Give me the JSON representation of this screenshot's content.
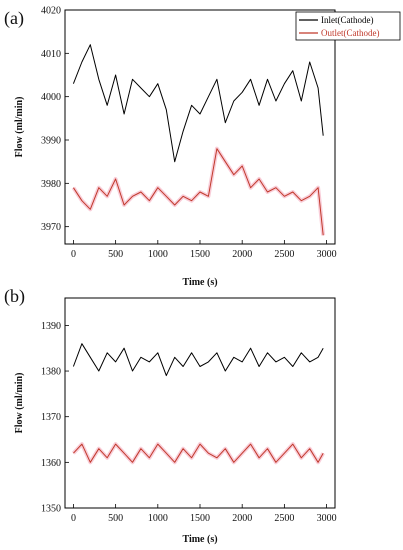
{
  "chart_data": [
    {
      "panel_label": "(a)",
      "type": "line",
      "xlabel": "Time (s)",
      "ylabel": "Flow (ml/min)",
      "xlim": [
        -100,
        3100
      ],
      "ylim": [
        3966,
        4020
      ],
      "xticks": [
        0,
        500,
        1000,
        1500,
        2000,
        2500,
        3000
      ],
      "yticks": [
        3970,
        3980,
        3990,
        4000,
        4010,
        4020
      ],
      "legend": {
        "placement": "top-right"
      },
      "series": [
        {
          "name": "Inlet(Cathode)",
          "color": "#000000",
          "x": [
            0,
            100,
            200,
            300,
            400,
            500,
            600,
            700,
            800,
            900,
            1000,
            1100,
            1200,
            1300,
            1400,
            1500,
            1600,
            1700,
            1800,
            1900,
            2000,
            2100,
            2200,
            2300,
            2400,
            2500,
            2600,
            2700,
            2800,
            2900,
            2960
          ],
          "values": [
            4003,
            4008,
            4012,
            4004,
            3998,
            4005,
            3996,
            4004,
            4002,
            4000,
            4003,
            3997,
            3985,
            3992,
            3998,
            3996,
            4000,
            4004,
            3994,
            3999,
            4001,
            4004,
            3998,
            4004,
            3999,
            4003,
            4006,
            3999,
            4008,
            4002,
            3991
          ]
        },
        {
          "name": "Outlet(Cathode)",
          "color": "#c0392b",
          "x": [
            0,
            100,
            200,
            300,
            400,
            500,
            600,
            700,
            800,
            900,
            1000,
            1100,
            1200,
            1300,
            1400,
            1500,
            1600,
            1700,
            1800,
            1900,
            2000,
            2100,
            2200,
            2300,
            2400,
            2500,
            2600,
            2700,
            2800,
            2900,
            2960
          ],
          "values": [
            3979,
            3976,
            3974,
            3979,
            3977,
            3981,
            3975,
            3977,
            3978,
            3976,
            3979,
            3977,
            3975,
            3977,
            3976,
            3978,
            3977,
            3988,
            3985,
            3982,
            3984,
            3979,
            3981,
            3978,
            3979,
            3977,
            3978,
            3976,
            3977,
            3979,
            3968
          ]
        }
      ]
    },
    {
      "panel_label": "(b)",
      "type": "line",
      "xlabel": "Time (s)",
      "ylabel": "Flow (ml/min)",
      "xlim": [
        -100,
        3100
      ],
      "ylim": [
        1350,
        1396
      ],
      "xticks": [
        0,
        500,
        1000,
        1500,
        2000,
        2500,
        3000
      ],
      "yticks": [
        1350,
        1360,
        1370,
        1380,
        1390
      ],
      "series": [
        {
          "name": "Inlet(Cathode)",
          "color": "#000000",
          "x": [
            0,
            100,
            200,
            300,
            400,
            500,
            600,
            700,
            800,
            900,
            1000,
            1100,
            1200,
            1300,
            1400,
            1500,
            1600,
            1700,
            1800,
            1900,
            2000,
            2100,
            2200,
            2300,
            2400,
            2500,
            2600,
            2700,
            2800,
            2900,
            2960
          ],
          "values": [
            1381,
            1386,
            1383,
            1380,
            1384,
            1382,
            1385,
            1380,
            1383,
            1382,
            1384,
            1379,
            1383,
            1381,
            1384,
            1381,
            1382,
            1384,
            1380,
            1383,
            1382,
            1385,
            1381,
            1384,
            1382,
            1383,
            1381,
            1384,
            1382,
            1383,
            1385
          ]
        },
        {
          "name": "Outlet(Cathode)",
          "color": "#c0392b",
          "x": [
            0,
            100,
            200,
            300,
            400,
            500,
            600,
            700,
            800,
            900,
            1000,
            1100,
            1200,
            1300,
            1400,
            1500,
            1600,
            1700,
            1800,
            1900,
            2000,
            2100,
            2200,
            2300,
            2400,
            2500,
            2600,
            2700,
            2800,
            2900,
            2960
          ],
          "values": [
            1362,
            1364,
            1360,
            1363,
            1361,
            1364,
            1362,
            1360,
            1363,
            1361,
            1364,
            1362,
            1360,
            1363,
            1361,
            1364,
            1362,
            1361,
            1363,
            1360,
            1362,
            1364,
            1361,
            1363,
            1360,
            1362,
            1364,
            1361,
            1363,
            1360,
            1362
          ]
        }
      ]
    }
  ]
}
